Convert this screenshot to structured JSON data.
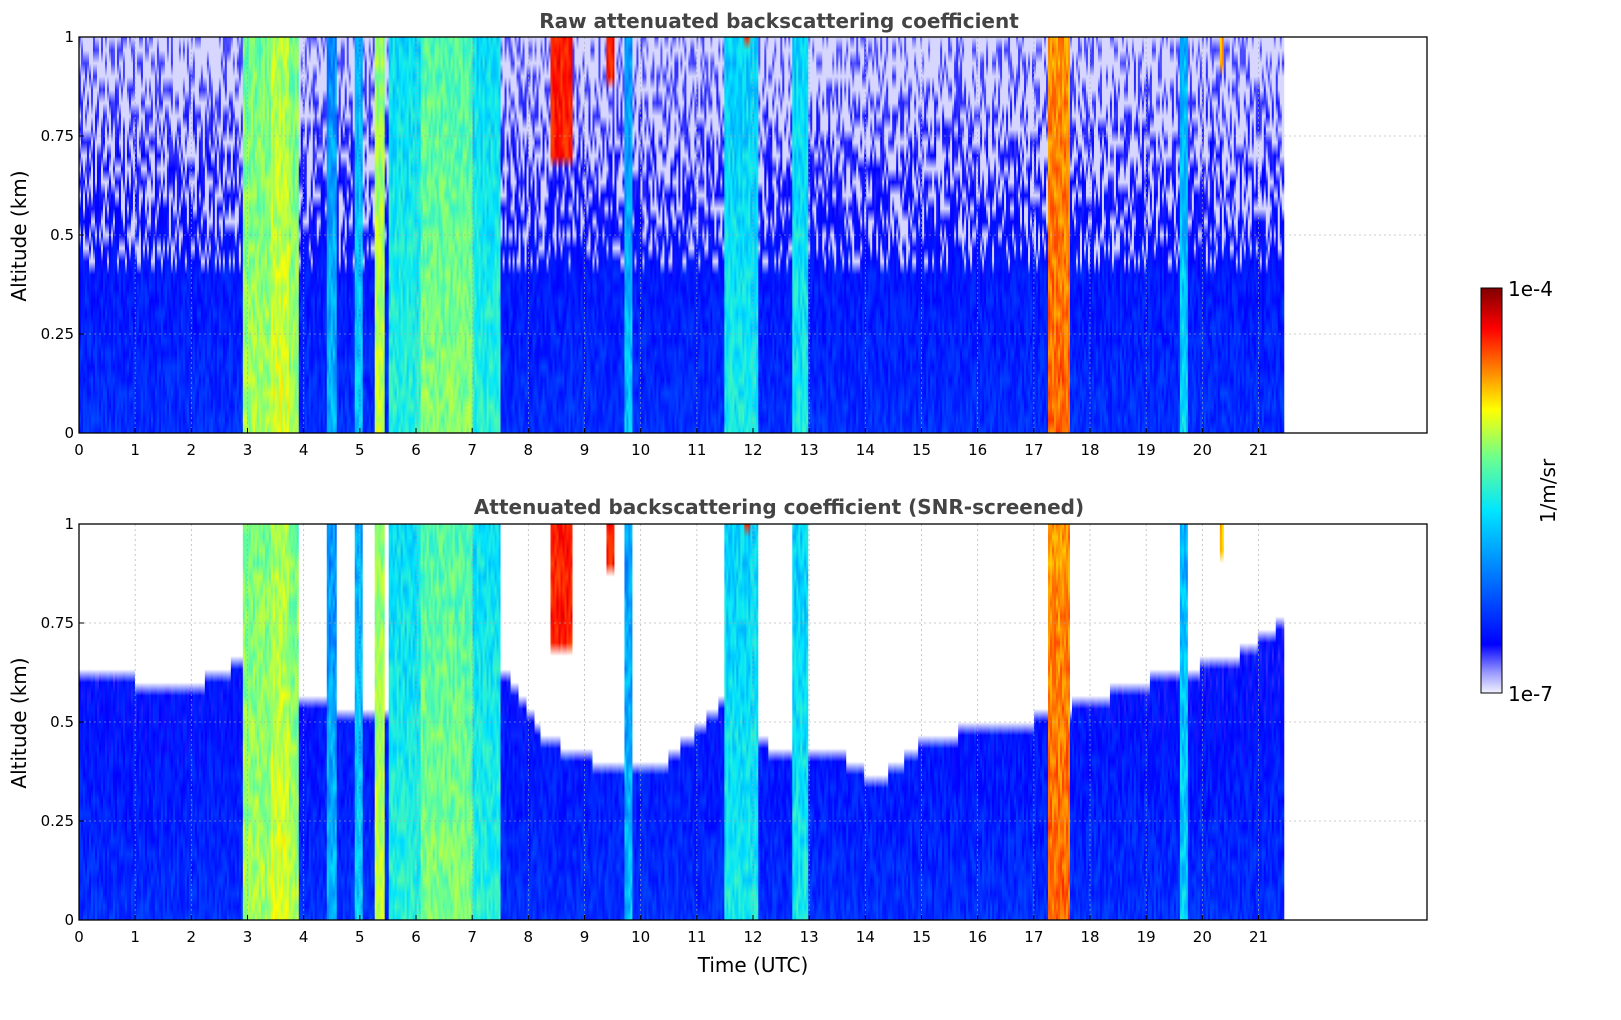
{
  "chart_data": {
    "type": "heatmap",
    "colormap": [
      "#ffffff",
      "#0000ff",
      "#0080ff",
      "#00e5ff",
      "#6cff8f",
      "#ffff00",
      "#ff8000",
      "#ff0000",
      "#800000"
    ],
    "colorbar": {
      "label": "1/m/sr",
      "min_label": "1e-7",
      "max_label": "1e-4",
      "scale": "log",
      "range": [
        1e-07,
        0.0001
      ]
    },
    "xlabel": "Time (UTC)",
    "xlim": [
      0,
      24
    ],
    "x_ticks": [
      0,
      1,
      2,
      3,
      4,
      5,
      6,
      7,
      8,
      9,
      10,
      11,
      12,
      13,
      14,
      15,
      16,
      17,
      18,
      19,
      20,
      21
    ],
    "data_end_time": 21.45,
    "ylabel": "Altitude (km)",
    "ylim": [
      0,
      1
    ],
    "y_ticks": [
      0,
      0.25,
      0.5,
      0.75,
      1
    ],
    "y_tick_labels": [
      "0",
      "0.25",
      "0.5",
      "0.75",
      "1"
    ],
    "grid": true,
    "panels": [
      {
        "title": "Raw attenuated backscattering coefficient",
        "screened": false
      },
      {
        "title": "Attenuated backscattering coefficient (SNR-screened)",
        "screened": true,
        "signal_top_profile": [
          {
            "t": 0.0,
            "alt": 0.62
          },
          {
            "t": 1.0,
            "alt": 0.6
          },
          {
            "t": 2.0,
            "alt": 0.58
          },
          {
            "t": 2.9,
            "alt": 0.65
          },
          {
            "t": 4.0,
            "alt": 0.55
          },
          {
            "t": 5.2,
            "alt": 0.5
          },
          {
            "t": 7.6,
            "alt": 0.62
          },
          {
            "t": 8.3,
            "alt": 0.45
          },
          {
            "t": 9.5,
            "alt": 0.38
          },
          {
            "t": 10.5,
            "alt": 0.4
          },
          {
            "t": 11.5,
            "alt": 0.55
          },
          {
            "t": 12.5,
            "alt": 0.4
          },
          {
            "t": 13.5,
            "alt": 0.42
          },
          {
            "t": 14.2,
            "alt": 0.34
          },
          {
            "t": 15.0,
            "alt": 0.44
          },
          {
            "t": 16.0,
            "alt": 0.48
          },
          {
            "t": 17.0,
            "alt": 0.5
          },
          {
            "t": 18.0,
            "alt": 0.55
          },
          {
            "t": 19.5,
            "alt": 0.62
          },
          {
            "t": 20.5,
            "alt": 0.65
          },
          {
            "t": 21.45,
            "alt": 0.75
          }
        ]
      }
    ],
    "features": [
      {
        "kind": "cloud",
        "t_start": 2.9,
        "t_end": 3.9,
        "intensity": 0.55
      },
      {
        "kind": "cloud",
        "t_start": 3.4,
        "t_end": 3.75,
        "intensity": 0.6
      },
      {
        "kind": "plume",
        "t_start": 4.4,
        "t_end": 4.6,
        "intensity": 0.32
      },
      {
        "kind": "plume",
        "t_start": 4.9,
        "t_end": 5.05,
        "intensity": 0.35
      },
      {
        "kind": "cloud",
        "t_start": 5.25,
        "t_end": 5.45,
        "intensity": 0.58
      },
      {
        "kind": "cloud",
        "t_start": 5.5,
        "t_end": 7.5,
        "intensity": 0.42
      },
      {
        "kind": "cloud",
        "t_start": 6.1,
        "t_end": 7.0,
        "intensity": 0.52
      },
      {
        "kind": "plume",
        "t_start": 9.7,
        "t_end": 9.85,
        "intensity": 0.33
      },
      {
        "kind": "cloud",
        "t_start": 11.5,
        "t_end": 12.1,
        "intensity": 0.4
      },
      {
        "kind": "cloud",
        "t_start": 12.7,
        "t_end": 13.0,
        "intensity": 0.4
      },
      {
        "kind": "cloud",
        "t_start": 17.25,
        "t_end": 17.65,
        "intensity": 0.78
      },
      {
        "kind": "plume",
        "t_start": 19.6,
        "t_end": 19.75,
        "intensity": 0.36
      },
      {
        "kind": "high_cloud",
        "t_start": 8.4,
        "t_end": 8.8,
        "alt_bottom": 0.7,
        "intensity": 0.85
      },
      {
        "kind": "high_cloud",
        "t_start": 9.4,
        "t_end": 9.55,
        "alt_bottom": 0.9,
        "intensity": 0.85
      },
      {
        "kind": "high_cloud",
        "t_start": 11.85,
        "t_end": 11.95,
        "alt_bottom": 0.97,
        "intensity": 0.8
      },
      {
        "kind": "high_cloud",
        "t_start": 20.3,
        "t_end": 20.4,
        "alt_bottom": 0.93,
        "intensity": 0.7
      }
    ]
  }
}
